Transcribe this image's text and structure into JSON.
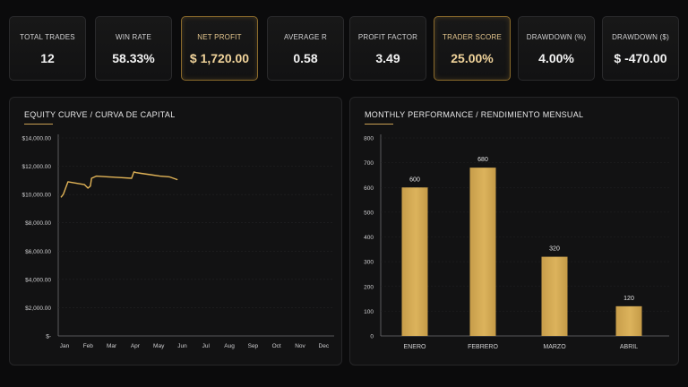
{
  "kpis": [
    {
      "label": "TOTAL TRADES",
      "value": "12",
      "highlight": false
    },
    {
      "label": "WIN RATE",
      "value": "58.33%",
      "highlight": false
    },
    {
      "label": "NET PROFIT",
      "value": "$ 1,720.00",
      "highlight": true
    },
    {
      "label": "AVERAGE R",
      "value": "0.58",
      "highlight": false
    },
    {
      "label": "PROFIT FACTOR",
      "value": "3.49",
      "highlight": false
    },
    {
      "label": "TRADER SCORE",
      "value": "25.00%",
      "highlight": true
    },
    {
      "label": "DRAWDOWN (%)",
      "value": "4.00%",
      "highlight": false
    },
    {
      "label": "DRAWDOWN ($)",
      "value": "$  -470.00",
      "highlight": false
    }
  ],
  "equity_panel": {
    "title": "EQUITY CURVE / CURVA DE CAPITAL"
  },
  "monthly_panel": {
    "title": "MONTHLY PERFORMANCE / RENDIMIENTO MENSUAL"
  },
  "colors": {
    "accent": "#c9a052",
    "line": "#e2b457",
    "bar": "#d7ad57"
  },
  "chart_data": [
    {
      "type": "line",
      "title": "EQUITY CURVE / CURVA DE CAPITAL",
      "categories": [
        "Jan",
        "Feb",
        "Mar",
        "Apr",
        "May",
        "Jun",
        "Jul",
        "Aug",
        "Sep",
        "Oct",
        "Nov",
        "Dec"
      ],
      "yticks": [
        "$-",
        "$2,000.00",
        "$4,000.00",
        "$6,000.00",
        "$8,000.00",
        "$10,000.00",
        "$12,000.00",
        "$14,000.00"
      ],
      "ylim": [
        0,
        14000
      ],
      "x": [
        0,
        0.1,
        0.3,
        1.0,
        1.15,
        1.25,
        1.3,
        1.5,
        2.0,
        2.5,
        3.0,
        3.1,
        3.2,
        3.4,
        3.8,
        4.2,
        4.6,
        4.95
      ],
      "values": [
        9800,
        10000,
        10900,
        10700,
        10450,
        10600,
        11150,
        11300,
        11250,
        11200,
        11150,
        11600,
        11550,
        11500,
        11400,
        11300,
        11250,
        11050
      ],
      "grid": true
    },
    {
      "type": "bar",
      "title": "MONTHLY PERFORMANCE / RENDIMIENTO MENSUAL",
      "categories": [
        "ENERO",
        "FEBRERO",
        "MARZO",
        "ABRIL"
      ],
      "values": [
        600,
        680,
        320,
        120
      ],
      "yticks": [
        "0",
        "100",
        "200",
        "300",
        "400",
        "500",
        "600",
        "700",
        "800"
      ],
      "ylim": [
        0,
        800
      ],
      "grid": true
    }
  ]
}
